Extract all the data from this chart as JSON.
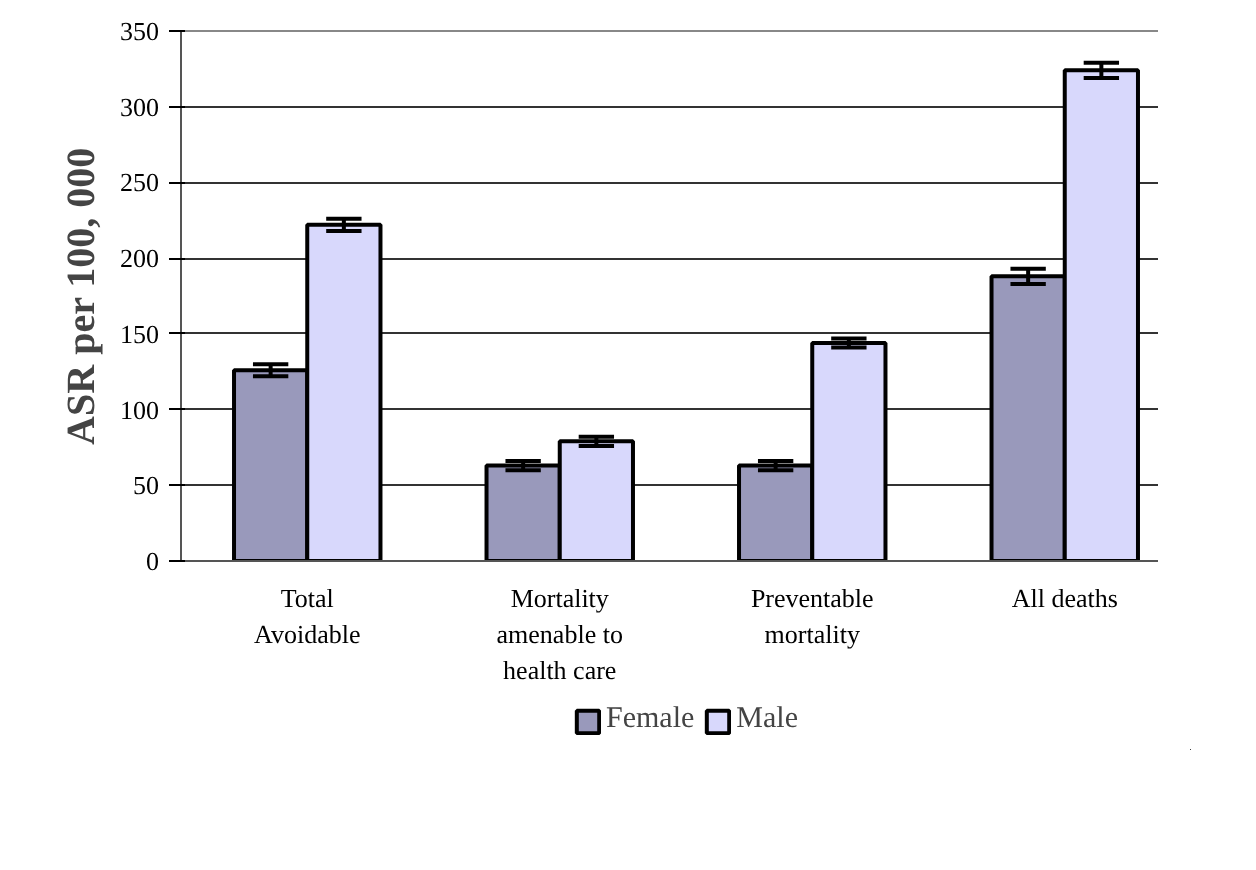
{
  "chart_data": {
    "type": "bar",
    "ylabel": "ASR per 100, 000",
    "categories": [
      "Total Avoidable",
      "Mortality amenable to health care",
      "Preventable mortality",
      "All deaths"
    ],
    "series": [
      {
        "name": "Female",
        "color": "#9999bb",
        "values": [
          126,
          63,
          63,
          188
        ],
        "errors": [
          4,
          3,
          3,
          5
        ]
      },
      {
        "name": "Male",
        "color": "#d8d8fc",
        "values": [
          222,
          79,
          144,
          324
        ],
        "errors": [
          4,
          3,
          3,
          5
        ]
      }
    ],
    "ylim": [
      0,
      350
    ],
    "yticks": [
      0,
      50,
      100,
      150,
      200,
      250,
      300,
      350
    ],
    "grid": "y",
    "legend": "bottom"
  }
}
